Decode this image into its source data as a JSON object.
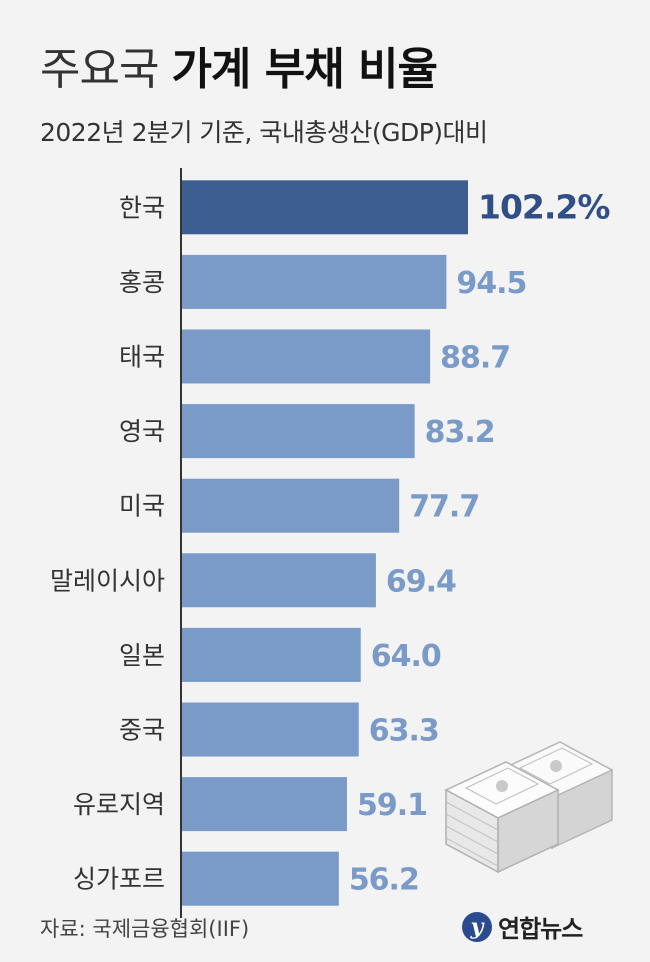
{
  "header": {
    "title_light": "주요국",
    "title_bold": "가계 부채 비율",
    "subtitle": "2022년 2분기 기준, 국내총생산(GDP)대비"
  },
  "footer": {
    "source": "자료: 국제금융협회(IIF)",
    "logo_text": "연합뉴스"
  },
  "colors": {
    "highlight_bar": "#3d5e91",
    "bar": "#7a9ac8",
    "highlight_label": "#2f4f86",
    "label": "#7a9ac8",
    "axis": "#333333"
  },
  "chart_data": {
    "type": "bar",
    "orientation": "horizontal",
    "categories": [
      "한국",
      "홍콩",
      "태국",
      "영국",
      "미국",
      "말레이시아",
      "일본",
      "중국",
      "유로지역",
      "싱가포르"
    ],
    "values": [
      102.2,
      94.5,
      88.7,
      83.2,
      77.7,
      69.4,
      64.0,
      63.3,
      59.1,
      56.2
    ],
    "value_labels": [
      "102.2%",
      "94.5",
      "88.7",
      "83.2",
      "77.7",
      "69.4",
      "64.0",
      "63.3",
      "59.1",
      "56.2"
    ],
    "highlight_index": 0,
    "xlim": [
      0,
      110
    ],
    "grid": false,
    "unit": "%"
  }
}
